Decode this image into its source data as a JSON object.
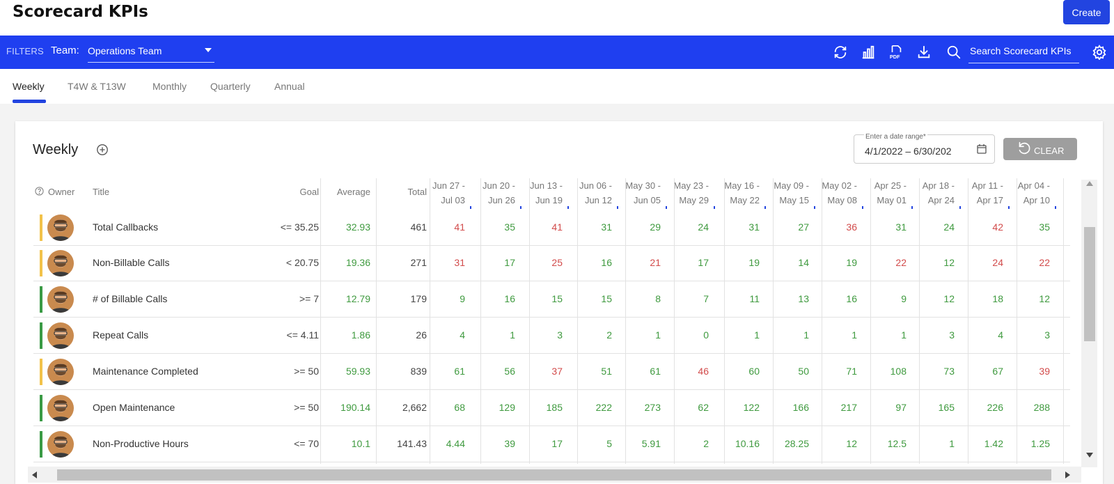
{
  "app": {
    "title": "Scorecard KPIs",
    "create_label": "Create"
  },
  "filters": {
    "label": "FILTERS",
    "team_label": "Team:",
    "team_value": "Operations Team",
    "search_placeholder": "Search Scorecard KPIs",
    "tools": [
      "refresh-icon",
      "chart-icon",
      "pdf-icon",
      "download-icon",
      "search-icon",
      "settings-icon"
    ]
  },
  "tabs": [
    "Weekly",
    "T4W & T13W",
    "Monthly",
    "Quarterly",
    "Annual"
  ],
  "active_tab": "Weekly",
  "card": {
    "title": "Weekly",
    "date_label": "Enter a date range*",
    "date_value": "4/1/2022 – 6/30/202",
    "clear_label": "CLEAR"
  },
  "table": {
    "headers": {
      "owner": "Owner",
      "title": "Title",
      "goal": "Goal",
      "average": "Average",
      "total": "Total"
    },
    "weeks": [
      [
        "Jun 27 -",
        "Jul 03"
      ],
      [
        "Jun 20 -",
        "Jun 26"
      ],
      [
        "Jun 13 -",
        "Jun 19"
      ],
      [
        "Jun 06 -",
        "Jun 12"
      ],
      [
        "May 30 -",
        "Jun 05"
      ],
      [
        "May 23 -",
        "May 29"
      ],
      [
        "May 16 -",
        "May 22"
      ],
      [
        "May 09 -",
        "May 15"
      ],
      [
        "May 02 -",
        "May 08"
      ],
      [
        "Apr 25 -",
        "May 01"
      ],
      [
        "Apr 18 -",
        "Apr 24"
      ],
      [
        "Apr 11 -",
        "Apr 17"
      ],
      [
        "Apr 04 -",
        "Apr 10"
      ]
    ],
    "rows": [
      {
        "status": "yellow",
        "title": "Total Callbacks",
        "goal": "<= 35.25",
        "average": "32.93",
        "total": "461",
        "values": [
          "41",
          "35",
          "41",
          "31",
          "29",
          "24",
          "31",
          "27",
          "36",
          "31",
          "24",
          "42",
          "35"
        ],
        "colors": [
          "r",
          "g",
          "r",
          "g",
          "g",
          "g",
          "g",
          "g",
          "r",
          "g",
          "g",
          "r",
          "g"
        ]
      },
      {
        "status": "yellow",
        "title": "Non-Billable Calls",
        "goal": "< 20.75",
        "average": "19.36",
        "total": "271",
        "values": [
          "31",
          "17",
          "25",
          "16",
          "21",
          "17",
          "19",
          "14",
          "19",
          "22",
          "12",
          "24",
          "22"
        ],
        "colors": [
          "r",
          "g",
          "r",
          "g",
          "r",
          "g",
          "g",
          "g",
          "g",
          "r",
          "g",
          "r",
          "r"
        ]
      },
      {
        "status": "green",
        "title": "# of Billable Calls",
        "goal": ">= 7",
        "average": "12.79",
        "total": "179",
        "values": [
          "9",
          "16",
          "15",
          "15",
          "8",
          "7",
          "11",
          "13",
          "16",
          "9",
          "12",
          "18",
          "12"
        ],
        "colors": [
          "g",
          "g",
          "g",
          "g",
          "g",
          "g",
          "g",
          "g",
          "g",
          "g",
          "g",
          "g",
          "g"
        ]
      },
      {
        "status": "green",
        "title": "Repeat Calls",
        "goal": "<= 4.11",
        "average": "1.86",
        "total": "26",
        "values": [
          "4",
          "1",
          "3",
          "2",
          "1",
          "0",
          "1",
          "1",
          "1",
          "1",
          "3",
          "4",
          "3"
        ],
        "colors": [
          "g",
          "g",
          "g",
          "g",
          "g",
          "g",
          "g",
          "g",
          "g",
          "g",
          "g",
          "g",
          "g"
        ]
      },
      {
        "status": "yellow",
        "title": "Maintenance Completed",
        "goal": ">= 50",
        "average": "59.93",
        "total": "839",
        "values": [
          "61",
          "56",
          "37",
          "51",
          "61",
          "46",
          "60",
          "50",
          "71",
          "108",
          "73",
          "67",
          "39"
        ],
        "colors": [
          "g",
          "g",
          "r",
          "g",
          "g",
          "r",
          "g",
          "g",
          "g",
          "g",
          "g",
          "g",
          "r"
        ]
      },
      {
        "status": "green",
        "title": "Open Maintenance",
        "goal": ">= 50",
        "average": "190.14",
        "total": "2,662",
        "values": [
          "68",
          "129",
          "185",
          "222",
          "273",
          "62",
          "122",
          "166",
          "217",
          "97",
          "165",
          "226",
          "288"
        ],
        "colors": [
          "g",
          "g",
          "g",
          "g",
          "g",
          "g",
          "g",
          "g",
          "g",
          "g",
          "g",
          "g",
          "g"
        ]
      },
      {
        "status": "green",
        "title": "Non-Productive Hours",
        "goal": "<= 70",
        "average": "10.1",
        "total": "141.43",
        "values": [
          "4.44",
          "39",
          "17",
          "5",
          "5.91",
          "2",
          "10.16",
          "28.25",
          "12",
          "12.5",
          "1",
          "1.42",
          "1.25"
        ],
        "colors": [
          "g",
          "g",
          "g",
          "g",
          "g",
          "g",
          "g",
          "g",
          "g",
          "g",
          "g",
          "g",
          "g"
        ]
      }
    ],
    "status_colors": {
      "yellow": "#f2c24a",
      "green": "#3a9a45"
    }
  }
}
